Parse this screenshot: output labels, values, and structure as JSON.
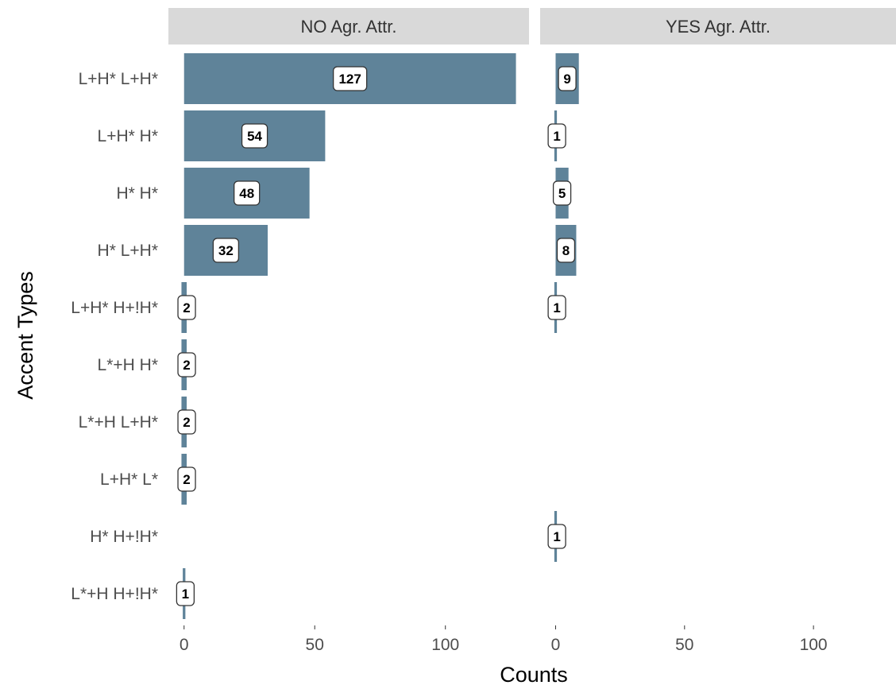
{
  "chart_data": {
    "type": "bar",
    "orientation": "horizontal",
    "facets": [
      "NO Agr. Attr.",
      "YES Agr. Attr."
    ],
    "categories": [
      "L+H* L+H*",
      "L+H* H*",
      "H* H*",
      "H* L+H*",
      "L+H* H+!H*",
      "L*+H H*",
      "L*+H L+H*",
      "L+H* L*",
      "H* H+!H*",
      "L*+H H+!H*"
    ],
    "series": [
      {
        "facet": "NO Agr. Attr.",
        "values": [
          127,
          54,
          48,
          32,
          2,
          2,
          2,
          2,
          null,
          1
        ]
      },
      {
        "facet": "YES Agr. Attr.",
        "values": [
          9,
          1,
          5,
          8,
          1,
          null,
          null,
          null,
          1,
          null
        ]
      }
    ],
    "xlabel": "Counts",
    "ylabel": "Accent Types",
    "xlim": [
      -6,
      132
    ],
    "xticks": [
      0,
      50,
      100
    ],
    "grid": false,
    "legend": "none",
    "bar_color": "#5f8399",
    "strip_color": "#d9d9d9"
  }
}
